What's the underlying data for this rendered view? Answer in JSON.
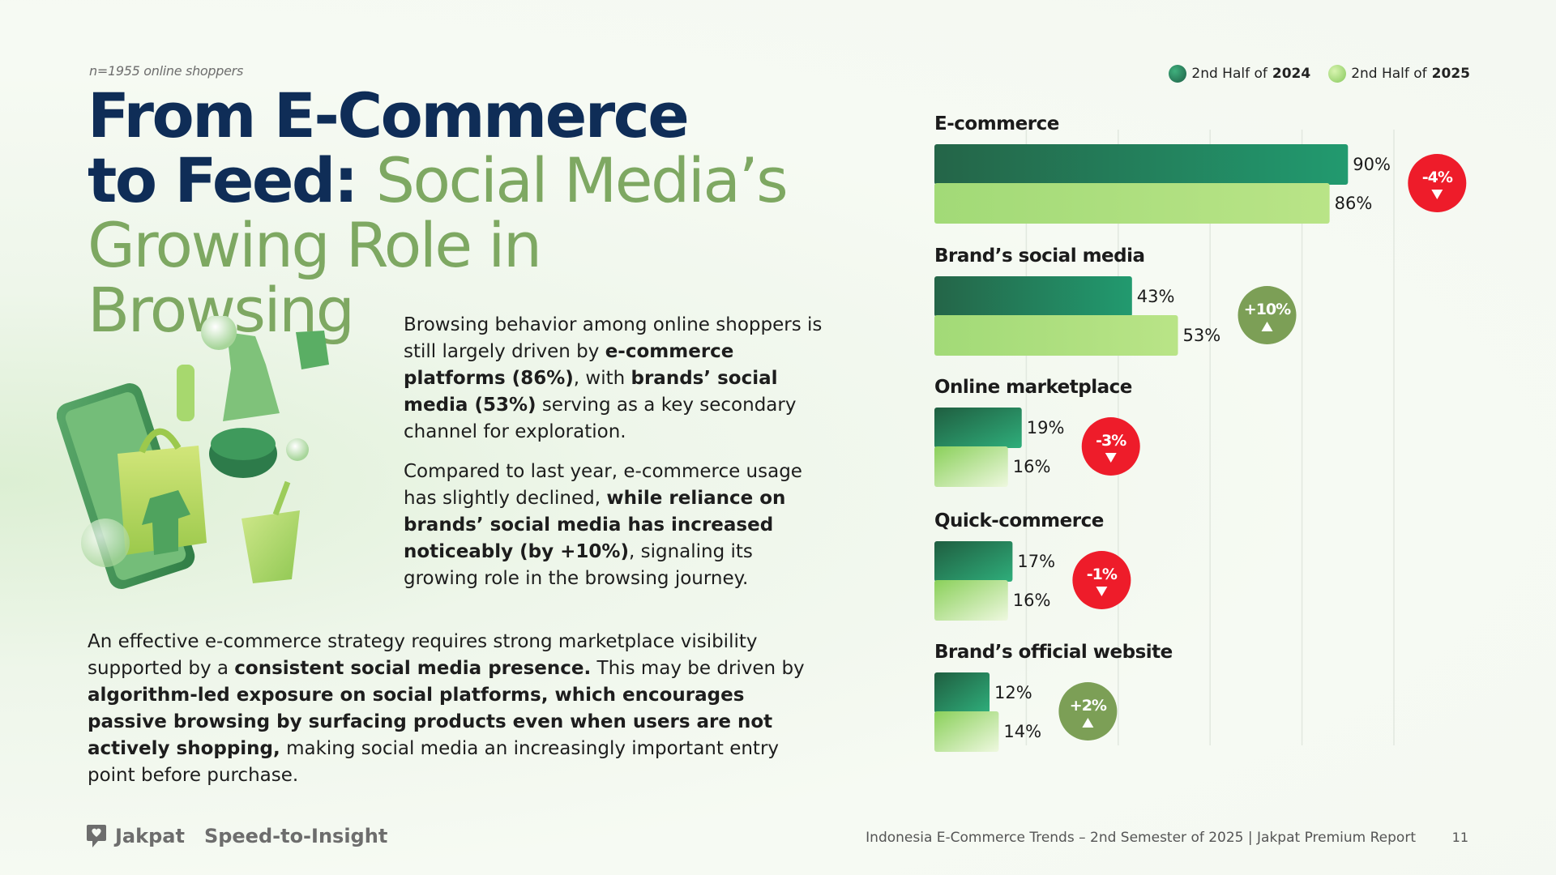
{
  "header": {
    "sample": "n=1955 online shoppers",
    "title_line1": "From E-Commerce",
    "title_line2_dark": "to Feed:",
    "title_line2_green": "Social Media’s",
    "title_line3": "Growing Role in Browsing"
  },
  "body": {
    "p1": [
      {
        "t": "Browsing behavior among online shoppers is still largely driven by ",
        "b": false
      },
      {
        "t": "e-commerce platforms (86%)",
        "b": true
      },
      {
        "t": ", with ",
        "b": false
      },
      {
        "t": "brands’ social media (53%)",
        "b": true
      },
      {
        "t": " serving as a key secondary channel for exploration.",
        "b": false
      }
    ],
    "p2": [
      {
        "t": "Compared to last year, e-commerce usage has slightly declined, ",
        "b": false
      },
      {
        "t": "while reliance on brands’ social media has increased noticeably (by +10%)",
        "b": true
      },
      {
        "t": ", signaling its growing role in the browsing journey.",
        "b": false
      }
    ],
    "p3": [
      {
        "t": "An effective e-commerce strategy requires strong marketplace visibility supported by a ",
        "b": false
      },
      {
        "t": "consistent social media presence.",
        "b": true
      },
      {
        "t": " This may be driven by ",
        "b": false
      },
      {
        "t": "algorithm-led exposure on social platforms, which encourages passive browsing by surfacing products even when users are not actively shopping,",
        "b": true
      },
      {
        "t": " making social media an increasingly important entry point before purchase.",
        "b": false
      }
    ]
  },
  "legend": {
    "s1_prefix": "2nd Half of ",
    "s1_year": "2024",
    "s2_prefix": "2nd Half of ",
    "s2_year": "2025"
  },
  "colors": {
    "series_2024": "#22936b",
    "series_2025": "#a6dc7c",
    "badge_down": "#ee1c2a",
    "badge_up": "#7c9f56"
  },
  "chart_data": {
    "type": "bar",
    "orientation": "horizontal",
    "categories": [
      "E-commerce",
      "Brand’s social media",
      "Online marketplace",
      "Quick-commerce",
      "Brand’s official website"
    ],
    "series": [
      {
        "name": "2nd Half of 2024",
        "values": [
          90,
          43,
          19,
          17,
          12
        ]
      },
      {
        "name": "2nd Half of 2025",
        "values": [
          86,
          53,
          16,
          16,
          14
        ]
      }
    ],
    "changes": [
      "-4%",
      "+10%",
      "-3%",
      "-1%",
      "+2%"
    ],
    "change_direction": [
      "down",
      "up",
      "down",
      "down",
      "up"
    ],
    "grid": true,
    "legend_position": "top-right"
  },
  "footer": {
    "brand": "Jakpat",
    "tagline": "Speed-to-Insight",
    "report": "Indonesia E-Commerce Trends – 2nd Semester of 2025 | Jakpat Premium Report",
    "page": "11"
  }
}
